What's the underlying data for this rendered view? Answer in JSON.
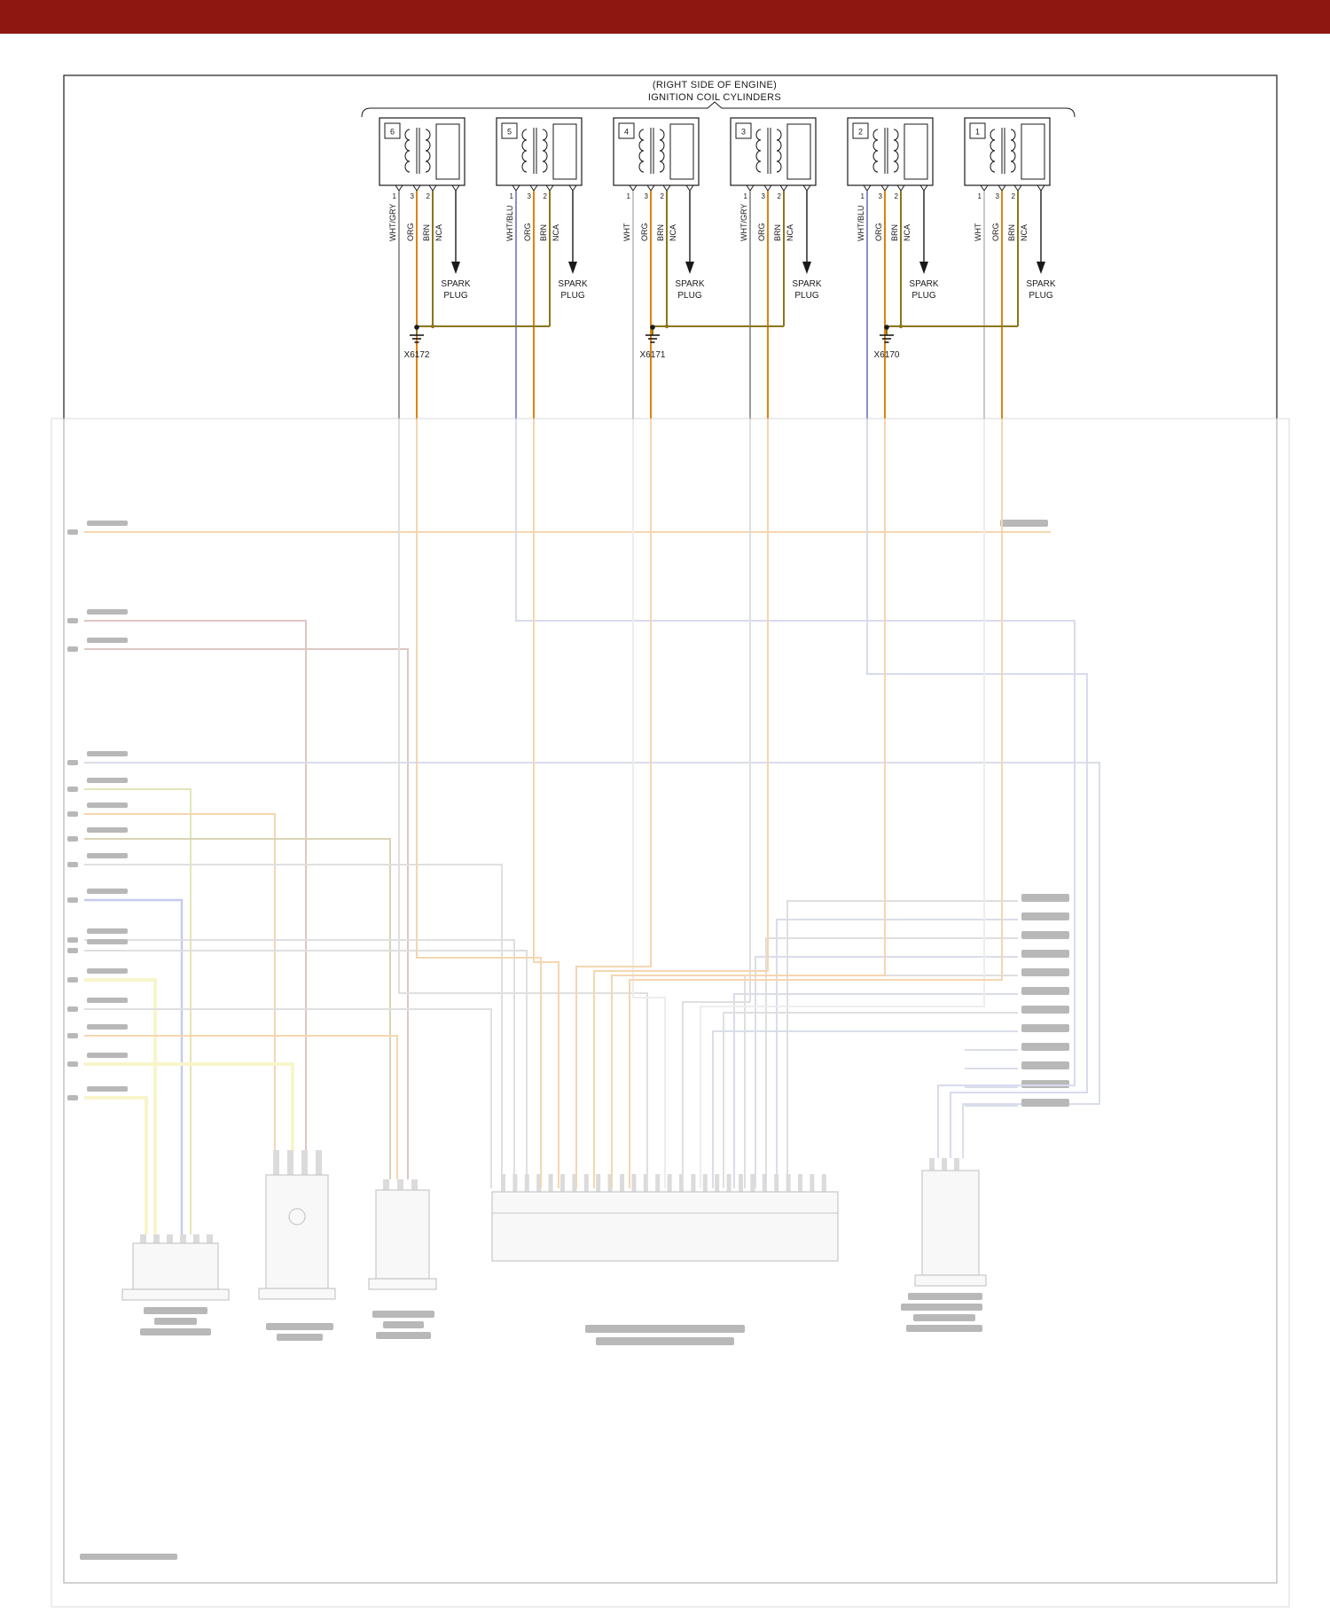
{
  "header": {
    "location": "(RIGHT SIDE OF ENGINE)",
    "title": "IGNITION COIL CYLINDERS"
  },
  "spark_plug": {
    "line1": "SPARK",
    "line2": "PLUG"
  },
  "coils": [
    {
      "cylinder": "6",
      "output": "NCA",
      "pins": [
        {
          "num": "1",
          "label": "WHT/GRY",
          "color": "wht_gry"
        },
        {
          "num": "3",
          "label": "ORG",
          "color": "org"
        },
        {
          "num": "2",
          "label": "BRN",
          "color": "brn"
        }
      ]
    },
    {
      "cylinder": "5",
      "output": "NCA",
      "pins": [
        {
          "num": "1",
          "label": "WHT/BLU",
          "color": "wht_blu"
        },
        {
          "num": "3",
          "label": "ORG",
          "color": "org"
        },
        {
          "num": "2",
          "label": "BRN",
          "color": "brn"
        }
      ]
    },
    {
      "cylinder": "4",
      "output": "NCA",
      "pins": [
        {
          "num": "1",
          "label": "WHT",
          "color": "wht"
        },
        {
          "num": "3",
          "label": "ORG",
          "color": "org"
        },
        {
          "num": "2",
          "label": "BRN",
          "color": "brn"
        }
      ]
    },
    {
      "cylinder": "3",
      "output": "NCA",
      "pins": [
        {
          "num": "1",
          "label": "WHT/GRY",
          "color": "wht_gry"
        },
        {
          "num": "3",
          "label": "ORG",
          "color": "org"
        },
        {
          "num": "2",
          "label": "BRN",
          "color": "brn"
        }
      ]
    },
    {
      "cylinder": "2",
      "output": "NCA",
      "pins": [
        {
          "num": "1",
          "label": "WHT/BLU",
          "color": "wht_blu"
        },
        {
          "num": "3",
          "label": "ORG",
          "color": "org"
        },
        {
          "num": "2",
          "label": "BRN",
          "color": "brn"
        }
      ]
    },
    {
      "cylinder": "1",
      "output": "NCA",
      "pins": [
        {
          "num": "1",
          "label": "WHT",
          "color": "wht"
        },
        {
          "num": "3",
          "label": "ORG",
          "color": "org"
        },
        {
          "num": "2",
          "label": "BRN",
          "color": "brn"
        }
      ]
    }
  ],
  "grounds": [
    {
      "label": "X6172"
    },
    {
      "label": "X6171"
    },
    {
      "label": "X6170"
    }
  ],
  "colors": {
    "top_bar": "#8f1712",
    "org": "#e0820a",
    "brn": "#8a7618",
    "wht_gry": "#9c9c9c",
    "wht_blu": "#8890cc",
    "wht": "#c9c9c9",
    "blu": "#4a5ad0",
    "yel": "#ece25e",
    "grn_yel": "#a8b020",
    "marn": "#96524a",
    "slate": "#8e96bc",
    "gry": "#9c9c9c"
  }
}
